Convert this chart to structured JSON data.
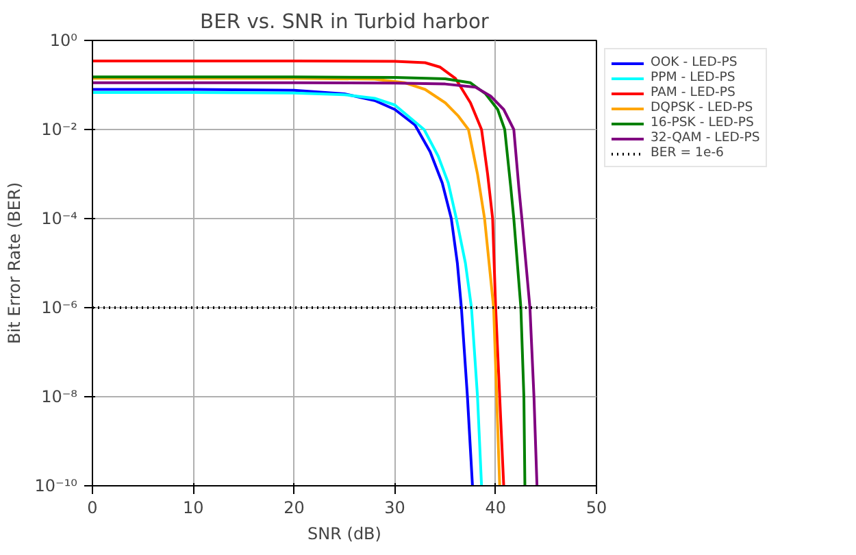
{
  "chart_data": {
    "type": "line",
    "title": "BER vs. SNR in Turbid harbor",
    "xlabel": "SNR (dB)",
    "ylabel": "Bit Error Rate (BER)",
    "log": "y",
    "grid": true,
    "legend": "right",
    "line_style": "solid",
    "marker": "none",
    "xlim": [
      0,
      50
    ],
    "xticks": [
      0,
      10,
      20,
      30,
      40,
      50
    ],
    "ylim": [
      1e-10,
      1
    ],
    "yticks": [
      {
        "value": 1e-10,
        "label": "10⁻¹⁰"
      },
      {
        "value": 1e-08,
        "label": "10⁻⁸"
      },
      {
        "value": 1e-06,
        "label": "10⁻⁶"
      },
      {
        "value": 0.0001,
        "label": "10⁻⁴"
      },
      {
        "value": 0.01,
        "label": "10⁻²"
      },
      {
        "value": 1,
        "label": "10⁰"
      }
    ],
    "series": [
      {
        "name": "OOK - LED-PS",
        "color": "#0000ff",
        "x": [
          0,
          10,
          20,
          25,
          28,
          30,
          32,
          33.5,
          34.7,
          35.6,
          36.2,
          36.6,
          37.2,
          37.7
        ],
        "values": [
          0.0794,
          0.0794,
          0.0759,
          0.0631,
          0.0447,
          0.0282,
          0.0126,
          0.00316,
          0.00063,
          0.0001,
          1e-05,
          1e-06,
          1e-08,
          1e-10
        ]
      },
      {
        "name": "PPM - LED-PS",
        "color": "#00ffff",
        "x": [
          0,
          10,
          20,
          25,
          28,
          30,
          32.9,
          34.3,
          35.3,
          36.1,
          37,
          37.6,
          38.2,
          38.6
        ],
        "values": [
          0.0676,
          0.0676,
          0.0661,
          0.0603,
          0.0501,
          0.0355,
          0.01,
          0.00251,
          0.00063,
          0.0001,
          1e-05,
          1e-06,
          1e-08,
          1e-10
        ]
      },
      {
        "name": "PAM - LED-PS",
        "color": "#ff0000",
        "x": [
          0,
          20,
          30,
          33,
          34.5,
          36,
          37.5,
          38.6,
          39.2,
          39.7,
          40,
          40.4,
          40.8
        ],
        "values": [
          0.347,
          0.347,
          0.339,
          0.316,
          0.251,
          0.141,
          0.0398,
          0.01,
          0.001,
          0.0001,
          1e-06,
          1e-08,
          1e-10
        ]
      },
      {
        "name": "DQPSK - LED-PS",
        "color": "#ffa500",
        "x": [
          0,
          20,
          28,
          31,
          33,
          35,
          36.3,
          37.3,
          38.2,
          38.9,
          39.8,
          40.1,
          40.4
        ],
        "values": [
          0.141,
          0.141,
          0.135,
          0.112,
          0.0794,
          0.0398,
          0.02,
          0.01,
          0.001,
          0.0001,
          1e-06,
          1e-08,
          1e-10
        ]
      },
      {
        "name": "16-PSK - LED-PS",
        "color": "#008000",
        "x": [
          0,
          20,
          30,
          35,
          37.5,
          39,
          40.2,
          40.9,
          41.5,
          41.8,
          42.5,
          42.8,
          42.9
        ],
        "values": [
          0.151,
          0.151,
          0.148,
          0.138,
          0.112,
          0.0631,
          0.0282,
          0.01,
          0.0005,
          0.0001,
          1e-06,
          1e-08,
          1e-10
        ]
      },
      {
        "name": "32-QAM - LED-PS",
        "color": "#800080",
        "x": [
          0,
          20,
          30,
          35,
          38,
          39.5,
          40.8,
          41.8,
          42.3,
          42.6,
          43.4,
          43.8,
          44.1
        ],
        "values": [
          0.112,
          0.112,
          0.11,
          0.105,
          0.0891,
          0.0562,
          0.0282,
          0.01,
          0.0005,
          0.0001,
          1e-06,
          1e-08,
          1e-10
        ]
      }
    ],
    "ref_lines": [
      {
        "axis": "y",
        "value": 1e-06,
        "label": "BER = 1e-6",
        "color": "#000000",
        "line_style": "dotted"
      }
    ]
  }
}
